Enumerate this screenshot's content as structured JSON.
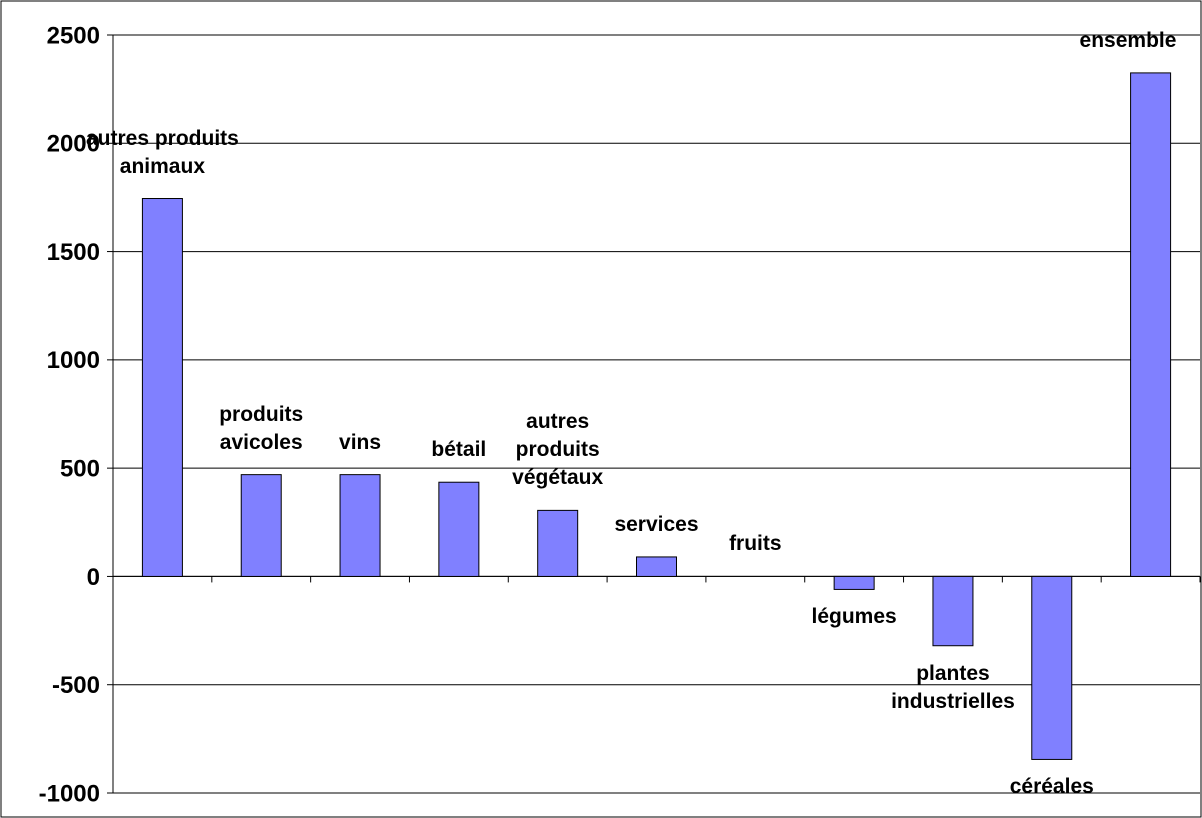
{
  "chart_data": {
    "type": "bar",
    "categories": [
      "autres produits animaux",
      "produits avicoles",
      "vins",
      "bétail",
      "autres produits végétaux",
      "services",
      "fruits",
      "légumes",
      "plantes industrielles",
      "céréales",
      "ensemble"
    ],
    "values": [
      1745,
      470,
      470,
      435,
      305,
      90,
      0,
      -60,
      -320,
      -845,
      2325
    ],
    "color": "#8080ff",
    "ylim": [
      -1000,
      2500
    ],
    "yticks": [
      -1000,
      -500,
      0,
      500,
      1000,
      1500,
      2000,
      2500
    ],
    "grid": true
  }
}
